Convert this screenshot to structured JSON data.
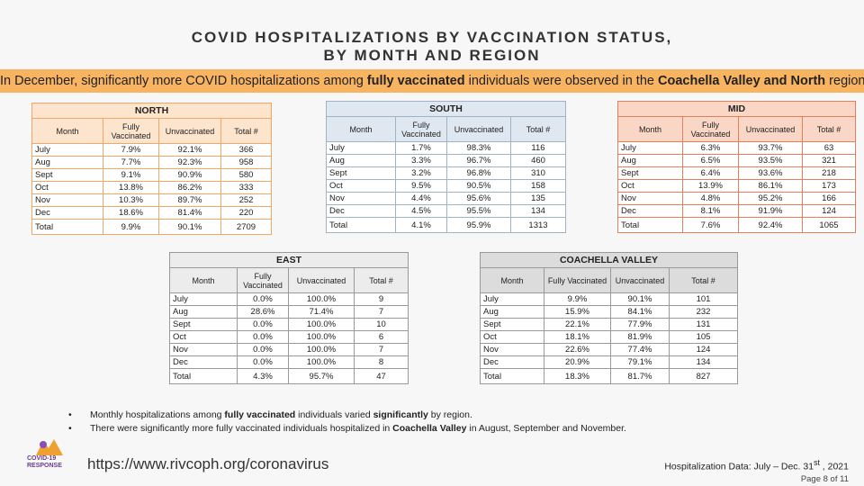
{
  "title": [
    "COVID HOSPITALIZATIONS BY VACCINATION STATUS,",
    "BY MONTH AND REGION"
  ],
  "banner": [
    {
      "text": "In December, significantly more COVID hospitalizations among ",
      "bold": false
    },
    {
      "text": "fully vaccinated",
      "bold": true
    },
    {
      "text": " individuals were observed in the ",
      "bold": false
    },
    {
      "text": "Coachella Valley and North",
      "bold": true
    },
    {
      "text": " region.",
      "bold": false
    }
  ],
  "tables": [
    {
      "title": "NORTH",
      "header": [
        "Month",
        "Fully Vaccinated",
        "Unvaccinated",
        "Total #"
      ],
      "rows": [
        [
          "July",
          "7.9%",
          "92.1%",
          "366"
        ],
        [
          "Aug",
          "7.7%",
          "92.3%",
          "958"
        ],
        [
          "Sept",
          "9.1%",
          "90.9%",
          "580"
        ],
        [
          "Oct",
          "13.8%",
          "86.2%",
          "333"
        ],
        [
          "Nov",
          "10.3%",
          "89.7%",
          "252"
        ],
        [
          "Dec",
          "18.6%",
          "81.4%",
          "220"
        ],
        [
          "Total",
          "9.9%",
          "90.1%",
          "2709"
        ]
      ]
    },
    {
      "title": "SOUTH",
      "header": [
        "Month",
        "Fully Vaccinated",
        "Unvaccinated",
        "Total #"
      ],
      "rows": [
        [
          "July",
          "1.7%",
          "98.3%",
          "116"
        ],
        [
          "Aug",
          "3.3%",
          "96.7%",
          "460"
        ],
        [
          "Sept",
          "3.2%",
          "96.8%",
          "310"
        ],
        [
          "Oct",
          "9.5%",
          "90.5%",
          "158"
        ],
        [
          "Nov",
          "4.4%",
          "95.6%",
          "135"
        ],
        [
          "Dec",
          "4.5%",
          "95.5%",
          "134"
        ],
        [
          "Total",
          "4.1%",
          "95.9%",
          "1313"
        ]
      ]
    },
    {
      "title": "MID",
      "header": [
        "Month",
        "Fully Vaccinated",
        "Unvaccinated",
        "Total #"
      ],
      "rows": [
        [
          "July",
          "6.3%",
          "93.7%",
          "63"
        ],
        [
          "Aug",
          "6.5%",
          "93.5%",
          "321"
        ],
        [
          "Sept",
          "6.4%",
          "93.6%",
          "218"
        ],
        [
          "Oct",
          "13.9%",
          "86.1%",
          "173"
        ],
        [
          "Nov",
          "4.8%",
          "95.2%",
          "166"
        ],
        [
          "Dec",
          "8.1%",
          "91.9%",
          "124"
        ],
        [
          "Total",
          "7.6%",
          "92.4%",
          "1065"
        ]
      ]
    },
    {
      "title": "EAST",
      "header": [
        "Month",
        "Fully Vaccinated",
        "Unvaccinated",
        "Total #"
      ],
      "rows": [
        [
          "July",
          "0.0%",
          "100.0%",
          "9"
        ],
        [
          "Aug",
          "28.6%",
          "71.4%",
          "7"
        ],
        [
          "Sept",
          "0.0%",
          "100.0%",
          "10"
        ],
        [
          "Oct",
          "0.0%",
          "100.0%",
          "6"
        ],
        [
          "Nov",
          "0.0%",
          "100.0%",
          "7"
        ],
        [
          "Dec",
          "0.0%",
          "100.0%",
          "8"
        ],
        [
          "Total",
          "4.3%",
          "95.7%",
          "47"
        ]
      ]
    },
    {
      "title": "COACHELLA VALLEY",
      "header": [
        "Month",
        "Fully Vaccinated",
        "Unvaccinated",
        "Total #"
      ],
      "rows": [
        [
          "July",
          "9.9%",
          "90.1%",
          "101"
        ],
        [
          "Aug",
          "15.9%",
          "84.1%",
          "232"
        ],
        [
          "Sept",
          "22.1%",
          "77.9%",
          "131"
        ],
        [
          "Oct",
          "18.1%",
          "81.9%",
          "105"
        ],
        [
          "Nov",
          "22.6%",
          "77.4%",
          "124"
        ],
        [
          "Dec",
          "20.9%",
          "79.1%",
          "134"
        ],
        [
          "Total",
          "18.3%",
          "81.7%",
          "827"
        ]
      ]
    }
  ],
  "bullets": [
    [
      {
        "text": "Monthly hospitalizations among ",
        "bold": false
      },
      {
        "text": "fully vaccinated",
        "bold": true
      },
      {
        "text": " individuals varied ",
        "bold": false
      },
      {
        "text": "significantly",
        "bold": true
      },
      {
        "text": " by region.",
        "bold": false
      }
    ],
    [
      {
        "text": "There were significantly more fully vaccinated individuals hospitalized in ",
        "bold": false
      },
      {
        "text": "Coachella Valley",
        "bold": true
      },
      {
        "text": " in August, September and November.",
        "bold": false
      }
    ]
  ],
  "logo": [
    "COVID-19",
    "RESPONSE"
  ],
  "url": "https://www.rivcoph.org/coronavirus",
  "source": [
    {
      "text": "Hospitalization Data: July – Dec. 31",
      "sup": false
    },
    {
      "text": "st",
      "sup": true
    },
    {
      "text": " , 2021",
      "sup": false
    }
  ],
  "page": "Page 8 of 11"
}
